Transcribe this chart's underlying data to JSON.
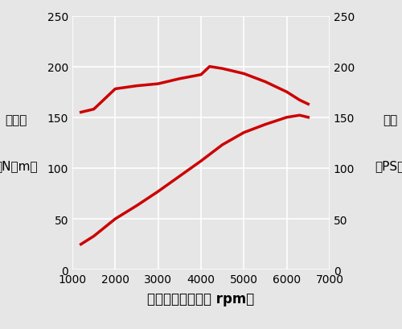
{
  "torque_rpm": [
    1200,
    1500,
    2000,
    2500,
    3000,
    3500,
    4000,
    4200,
    4500,
    5000,
    5500,
    6000,
    6300,
    6500
  ],
  "torque_nm": [
    155,
    158,
    178,
    181,
    183,
    188,
    192,
    200,
    198,
    193,
    185,
    175,
    167,
    163
  ],
  "power_rpm": [
    1200,
    1500,
    2000,
    2500,
    3000,
    3500,
    4000,
    4500,
    5000,
    5500,
    6000,
    6300,
    6500
  ],
  "power_ps": [
    25,
    33,
    50,
    63,
    77,
    92,
    107,
    123,
    135,
    143,
    150,
    152,
    150
  ],
  "line_color": "#cc0000",
  "line_width": 2.5,
  "bg_color": "#e6e6e6",
  "grid_color": "#ffffff",
  "xlim": [
    1000,
    7000
  ],
  "ylim": [
    0,
    250
  ],
  "xticks": [
    1000,
    2000,
    3000,
    4000,
    5000,
    6000,
    7000
  ],
  "yticks": [
    0,
    50,
    100,
    150,
    200,
    250
  ],
  "xlabel": "エンジン回転数［ rpm］",
  "ylabel_left_top": "トルク",
  "ylabel_left_bottom": "［N・m］",
  "ylabel_right_top": "出力",
  "ylabel_right_bottom": "［PS］",
  "xlabel_fontsize": 12,
  "ylabel_fontsize": 11,
  "tick_fontsize": 10,
  "figsize": [
    5.0,
    4.1
  ],
  "dpi": 100
}
